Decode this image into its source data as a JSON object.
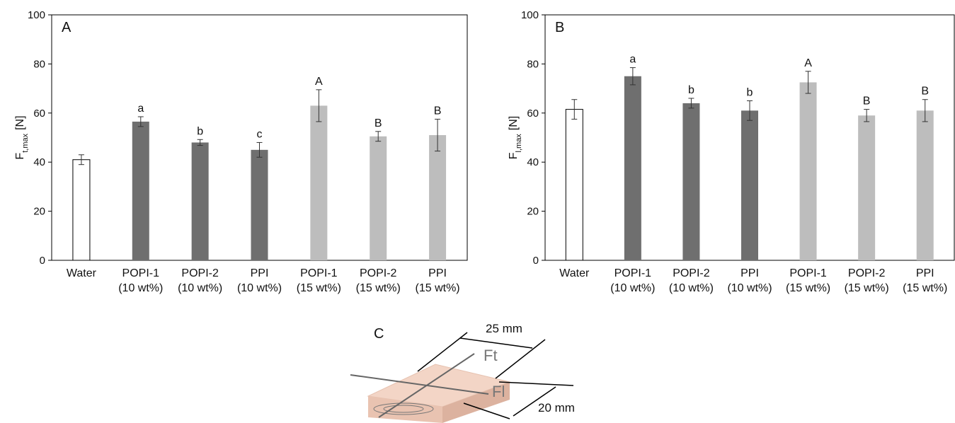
{
  "chart_data": [
    {
      "type": "bar",
      "panel": "A",
      "ylabel": {
        "main": "F",
        "sub": "t,max",
        "unit": "[N]"
      },
      "categories": [
        [
          "Water"
        ],
        [
          "POPI-1",
          "(10 wt%)"
        ],
        [
          "POPI-2",
          "(10 wt%)"
        ],
        [
          "PPI",
          "(10 wt%)"
        ],
        [
          "POPI-1",
          "(15 wt%)"
        ],
        [
          "POPI-2",
          "(15 wt%)"
        ],
        [
          "PPI",
          "(15 wt%)"
        ]
      ],
      "values": [
        41,
        56.5,
        48,
        45,
        63,
        50.5,
        51
      ],
      "errors": [
        2,
        2,
        1.2,
        3,
        6.5,
        2,
        6.5
      ],
      "annotations": [
        null,
        "a",
        "b",
        "c",
        "A",
        "B",
        "B"
      ],
      "colors": [
        "#ffffff",
        "#6f6f6f",
        "#6f6f6f",
        "#6f6f6f",
        "#bdbdbd",
        "#bdbdbd",
        "#bdbdbd"
      ],
      "ylim": [
        0,
        100
      ],
      "yticks": [
        0,
        20,
        40,
        60,
        80,
        100
      ]
    },
    {
      "type": "bar",
      "panel": "B",
      "ylabel": {
        "main": "F",
        "sub": "l,max",
        "unit": "[N]"
      },
      "categories": [
        [
          "Water"
        ],
        [
          "POPI-1",
          "(10 wt%)"
        ],
        [
          "POPI-2",
          "(10 wt%)"
        ],
        [
          "PPI",
          "(10 wt%)"
        ],
        [
          "POPI-1",
          "(15 wt%)"
        ],
        [
          "POPI-2",
          "(15 wt%)"
        ],
        [
          "PPI",
          "(15 wt%)"
        ]
      ],
      "values": [
        61.5,
        75,
        64,
        61,
        72.5,
        59,
        61
      ],
      "errors": [
        4,
        3.5,
        2,
        4,
        4.5,
        2.5,
        4.5
      ],
      "annotations": [
        null,
        "a",
        "b",
        "b",
        "A",
        "B",
        "B"
      ],
      "colors": [
        "#ffffff",
        "#6f6f6f",
        "#6f6f6f",
        "#6f6f6f",
        "#bdbdbd",
        "#bdbdbd",
        "#bdbdbd"
      ],
      "ylim": [
        0,
        100
      ],
      "yticks": [
        0,
        20,
        40,
        60,
        80,
        100
      ]
    }
  ],
  "diagram": {
    "label": "C",
    "width_label": "25 mm",
    "depth_label": "20 mm",
    "force_t": "Ft",
    "force_l": "Fl"
  }
}
